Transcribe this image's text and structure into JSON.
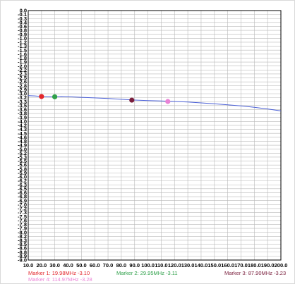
{
  "chart_data": {
    "type": "line",
    "title": "",
    "xlabel": "",
    "ylabel": "",
    "xlim": [
      10.0,
      200.0
    ],
    "ylim": [
      -9.0,
      0.0
    ],
    "grid": true,
    "x_ticks": [
      "10.0",
      "20.0",
      "30.0",
      "40.0",
      "50.0",
      "60.0",
      "70.0",
      "80.0",
      "90.0",
      "100.0",
      "110.0",
      "120.0",
      "130.0",
      "140.0",
      "150.0",
      "160.0",
      "170.0",
      "180.0",
      "190.0",
      "200.0"
    ],
    "y_ticks": [
      "0.0",
      "-0.1",
      "-0.3",
      "-0.4",
      "-0.6",
      "-0.8",
      "-0.9",
      "-1.0",
      "-1.2",
      "-1.3",
      "-1.5",
      "-1.6",
      "-1.8",
      "-1.9",
      "-2.0",
      "-2.2",
      "-2.3",
      "-2.5",
      "-2.6",
      "-2.8",
      "-2.9",
      "-3.0",
      "-3.2",
      "-3.3",
      "-3.5",
      "-3.6",
      "-3.8",
      "-3.9",
      "-4.0",
      "-4.2",
      "-4.3",
      "-4.5",
      "-4.6",
      "-4.8",
      "-4.9",
      "-5.0",
      "-5.2",
      "-5.3",
      "-5.5",
      "-5.6",
      "-5.8",
      "-5.9",
      "-6.0",
      "-6.2",
      "-6.3",
      "-6.5",
      "-6.6",
      "-6.8",
      "-6.9",
      "-7.0",
      "-7.2",
      "-7.3",
      "-7.5",
      "-7.6",
      "-7.8",
      "-7.9",
      "-8.0",
      "-8.2",
      "-8.3",
      "-8.5",
      "-8.6",
      "-8.8",
      "-8.9",
      "-9.0"
    ],
    "series": [
      {
        "color": "#4a5fd6",
        "x": [
          10,
          15,
          20,
          25,
          30,
          35,
          40,
          50,
          60,
          70,
          80,
          90,
          100,
          110,
          120,
          130,
          140,
          150,
          160,
          170,
          180,
          190,
          200
        ],
        "y": [
          -3.07,
          -3.08,
          -3.1,
          -3.11,
          -3.11,
          -3.1,
          -3.11,
          -3.13,
          -3.15,
          -3.17,
          -3.2,
          -3.23,
          -3.25,
          -3.26,
          -3.28,
          -3.3,
          -3.33,
          -3.36,
          -3.4,
          -3.44,
          -3.49,
          -3.55,
          -3.62
        ]
      }
    ],
    "markers": [
      {
        "label": "Marker 1: 19.98MHz -3.10",
        "x": 19.98,
        "y": -3.1,
        "color": "#e3262b"
      },
      {
        "label": "Marker 2: 29.95MHz -3.11",
        "x": 29.95,
        "y": -3.11,
        "color": "#2fa04a"
      },
      {
        "label": "Marker 3: 87.90MHz -3.23",
        "x": 87.9,
        "y": -3.23,
        "color": "#7a1f3d"
      },
      {
        "label": "Marker 4: 114.97MHz -3.28",
        "x": 114.97,
        "y": -3.28,
        "color": "#ea84d6"
      }
    ]
  }
}
